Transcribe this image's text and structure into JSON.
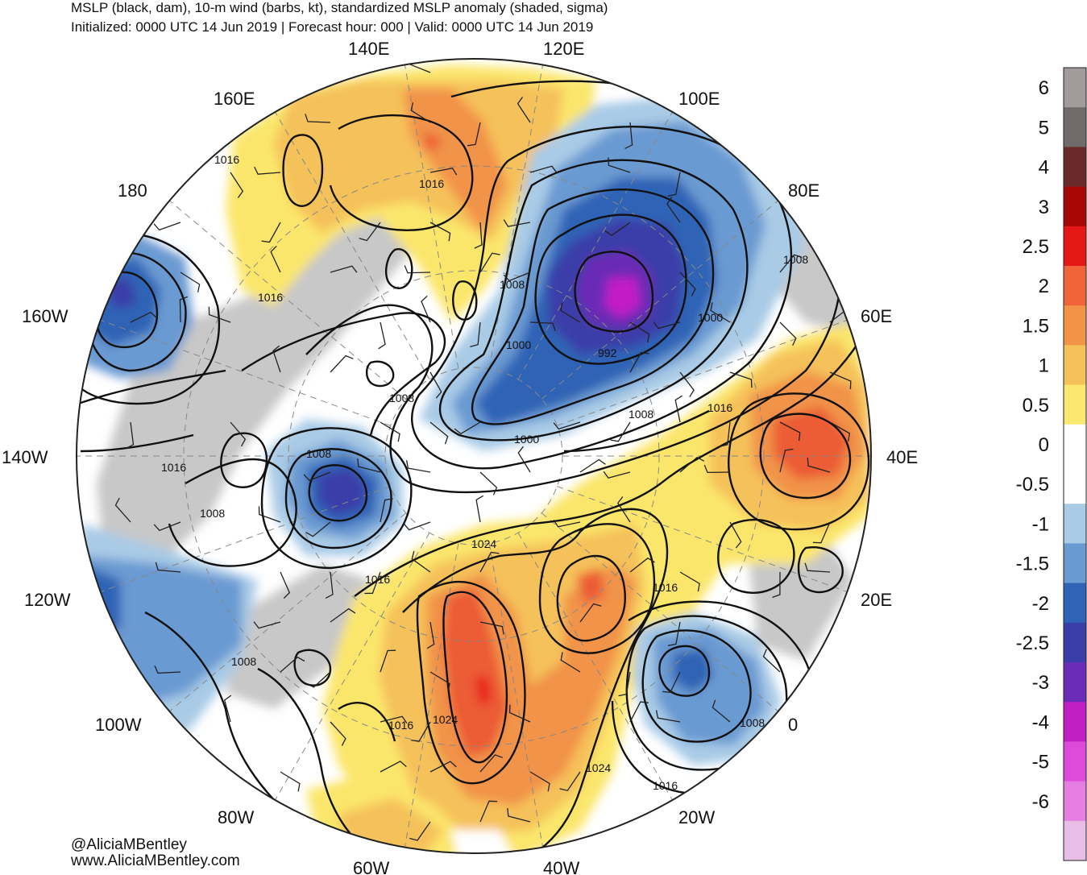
{
  "header": {
    "title": "MSLP (black, dam), 10-m wind (barbs, kt), standardized MSLP anomaly (shaded, sigma)",
    "subtitle": "Initialized: 0000 UTC 14 Jun 2019 | Forecast hour: 000 | Valid: 0000 UTC 14 Jun 2019"
  },
  "credits": {
    "handle": "@AliciaMBentley",
    "website": "www.AliciaMBentley.com"
  },
  "map": {
    "projection": "north polar stereographic",
    "longitude_labels": [
      "140E",
      "120E",
      "160E",
      "100E",
      "180",
      "80E",
      "160W",
      "60E",
      "140W",
      "40E",
      "120W",
      "20E",
      "100W",
      "0",
      "80W",
      "20W",
      "60W",
      "40W"
    ],
    "isobar_labels": [
      "1016",
      "1016",
      "1016",
      "1008",
      "1008",
      "1000",
      "992",
      "1000",
      "1000",
      "1008",
      "1008",
      "1016",
      "1008",
      "1016",
      "1008",
      "1024",
      "1016",
      "1016",
      "1008",
      "1016",
      "1024",
      "1016",
      "1024",
      "1008",
      "1016"
    ],
    "anomaly_colors": {
      "strong_negative": "#c31ec6",
      "negative_3": "#6a2cb5",
      "negative_2_5": "#3a3ca8",
      "negative_2": "#2f63b5",
      "negative_1_5": "#6a9ad2",
      "negative_1": "#a9cbe6",
      "neutral": "#ffffff",
      "positive_0_5": "#fbe66c",
      "positive_1": "#f5c15a",
      "positive_1_5": "#f19349",
      "positive_2": "#ec5b35",
      "positive_2_5": "#e61d1d",
      "land_gray": "#c8c8c8"
    }
  },
  "colorbar": {
    "tick_labels": [
      "6",
      "5",
      "4",
      "3",
      "2.5",
      "2",
      "1.5",
      "1",
      "0.5",
      "0",
      "-0.5",
      "-1",
      "-1.5",
      "-2",
      "-2.5",
      "-3",
      "-4",
      "-5",
      "-6"
    ],
    "colors": [
      "#a39b9b",
      "#706a6a",
      "#6b2a2a",
      "#a70707",
      "#e61717",
      "#f0643a",
      "#f29448",
      "#f5c15a",
      "#fbe871",
      "#ffffff",
      "#ffffff",
      "#a9cbe6",
      "#6a9ad2",
      "#2f63b5",
      "#3a3ca8",
      "#6a2cb5",
      "#c31ec6",
      "#dd4bdb",
      "#e57ee0",
      "#e9bee6"
    ]
  }
}
